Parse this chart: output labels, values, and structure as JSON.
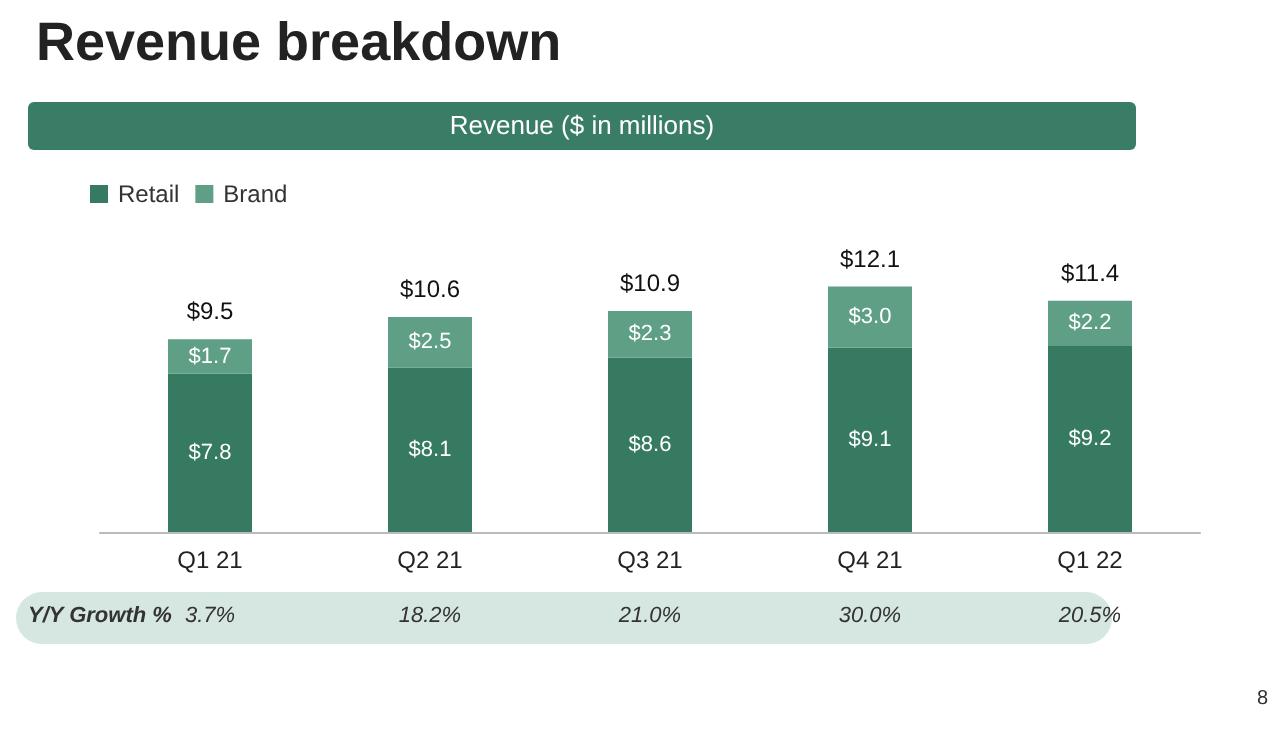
{
  "chart_data": {
    "type": "bar",
    "title": "Revenue breakdown",
    "subtitle": "Revenue ($ in millions)",
    "categories": [
      "Q1 21",
      "Q2 21",
      "Q3 21",
      "Q4 21",
      "Q1 22"
    ],
    "stacked": true,
    "series": [
      {
        "name": "Retail",
        "color": "#367a62",
        "values": [
          7.8,
          8.1,
          8.6,
          9.1,
          9.2
        ],
        "value_labels": [
          "$7.8",
          "$8.1",
          "$8.6",
          "$9.1",
          "$9.2"
        ]
      },
      {
        "name": "Brand",
        "color": "#5e9f86",
        "values": [
          1.7,
          2.5,
          2.3,
          3.0,
          2.2
        ],
        "value_labels": [
          "$1.7",
          "$2.5",
          "$2.3",
          "$3.0",
          "$2.2"
        ]
      }
    ],
    "totals": [
      "$9.5",
      "$10.6",
      "$10.9",
      "$12.1",
      "$11.4"
    ],
    "legend": "top left",
    "annotations": [
      "Y/Y Growth %",
      "3.7%",
      "18.2%",
      "21.0%",
      "30.0%",
      "20.5%",
      "8"
    ]
  }
}
